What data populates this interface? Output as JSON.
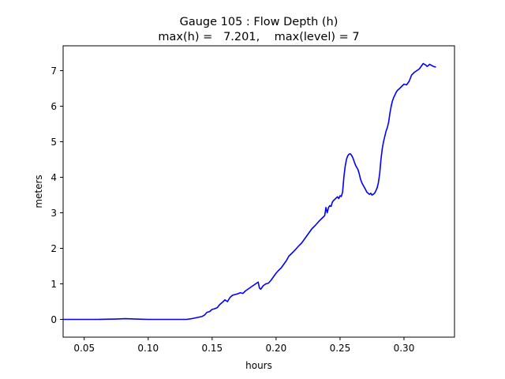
{
  "chart_data": {
    "type": "line",
    "title": "Gauge 105 : Flow Depth (h)",
    "subtitle": "max(h) =   7.201,    max(level) = 7",
    "xlabel": "hours",
    "ylabel": "meters",
    "xlim": [
      0.0335,
      0.3395
    ],
    "ylim": [
      -0.5,
      7.7
    ],
    "xticks": [
      0.05,
      0.1,
      0.15,
      0.2,
      0.25,
      0.3
    ],
    "xtick_labels": [
      "0.05",
      "0.10",
      "0.15",
      "0.20",
      "0.25",
      "0.30"
    ],
    "yticks": [
      0,
      1,
      2,
      3,
      4,
      5,
      6,
      7
    ],
    "ytick_labels": [
      "0",
      "1",
      "2",
      "3",
      "4",
      "5",
      "6",
      "7"
    ],
    "grid": false,
    "line_color": "#0000ff",
    "series": [
      {
        "x": [
          0.0335,
          0.06,
          0.075,
          0.082,
          0.09,
          0.1,
          0.12,
          0.13,
          0.134,
          0.138,
          0.142,
          0.144,
          0.146,
          0.148,
          0.15,
          0.152,
          0.154,
          0.156,
          0.158,
          0.16,
          0.162,
          0.164,
          0.166,
          0.168,
          0.17,
          0.172,
          0.174,
          0.176,
          0.178,
          0.18,
          0.182,
          0.184,
          0.186,
          0.187,
          0.188,
          0.19,
          0.192,
          0.194,
          0.196,
          0.198,
          0.2,
          0.202,
          0.204,
          0.206,
          0.208,
          0.21,
          0.212,
          0.214,
          0.216,
          0.218,
          0.22,
          0.222,
          0.224,
          0.226,
          0.228,
          0.23,
          0.232,
          0.234,
          0.236,
          0.238,
          0.239,
          0.24,
          0.241,
          0.242,
          0.243,
          0.244,
          0.245,
          0.246,
          0.247,
          0.248,
          0.249,
          0.25,
          0.251,
          0.252,
          0.253,
          0.254,
          0.255,
          0.256,
          0.257,
          0.258,
          0.259,
          0.26,
          0.261,
          0.262,
          0.263,
          0.264,
          0.265,
          0.266,
          0.267,
          0.268,
          0.269,
          0.27,
          0.271,
          0.272,
          0.273,
          0.274,
          0.275,
          0.276,
          0.277,
          0.278,
          0.279,
          0.28,
          0.281,
          0.282,
          0.283,
          0.284,
          0.285,
          0.286,
          0.287,
          0.288,
          0.289,
          0.29,
          0.291,
          0.292,
          0.293,
          0.294,
          0.295,
          0.296,
          0.298,
          0.3,
          0.302,
          0.304,
          0.306,
          0.308,
          0.31,
          0.312,
          0.313,
          0.314,
          0.315,
          0.316,
          0.317,
          0.318,
          0.319,
          0.32,
          0.321,
          0.322,
          0.323,
          0.324,
          0.325
        ],
        "y": [
          0.0,
          0.0,
          0.01,
          0.02,
          0.01,
          0.0,
          0.0,
          0.0,
          0.02,
          0.05,
          0.08,
          0.12,
          0.2,
          0.22,
          0.28,
          0.3,
          0.33,
          0.42,
          0.48,
          0.55,
          0.5,
          0.62,
          0.68,
          0.7,
          0.72,
          0.75,
          0.73,
          0.8,
          0.85,
          0.9,
          0.95,
          1.0,
          1.05,
          0.88,
          0.85,
          0.95,
          1.0,
          1.02,
          1.1,
          1.2,
          1.3,
          1.38,
          1.45,
          1.55,
          1.65,
          1.78,
          1.85,
          1.92,
          2.0,
          2.08,
          2.15,
          2.25,
          2.35,
          2.45,
          2.55,
          2.62,
          2.7,
          2.78,
          2.85,
          2.92,
          3.15,
          3.0,
          3.15,
          3.2,
          3.18,
          3.3,
          3.35,
          3.38,
          3.42,
          3.45,
          3.4,
          3.48,
          3.46,
          3.58,
          4.0,
          4.3,
          4.5,
          4.6,
          4.65,
          4.66,
          4.62,
          4.55,
          4.45,
          4.35,
          4.28,
          4.22,
          4.1,
          3.95,
          3.85,
          3.78,
          3.72,
          3.65,
          3.58,
          3.55,
          3.52,
          3.55,
          3.5,
          3.52,
          3.55,
          3.62,
          3.7,
          3.85,
          4.1,
          4.5,
          4.8,
          5.0,
          5.15,
          5.3,
          5.4,
          5.55,
          5.8,
          6.0,
          6.15,
          6.25,
          6.32,
          6.4,
          6.45,
          6.48,
          6.55,
          6.62,
          6.6,
          6.7,
          6.88,
          6.95,
          7.0,
          7.05,
          7.1,
          7.15,
          7.2,
          7.18,
          7.16,
          7.12,
          7.14,
          7.18,
          7.16,
          7.14,
          7.12,
          7.11,
          7.1
        ]
      }
    ]
  }
}
